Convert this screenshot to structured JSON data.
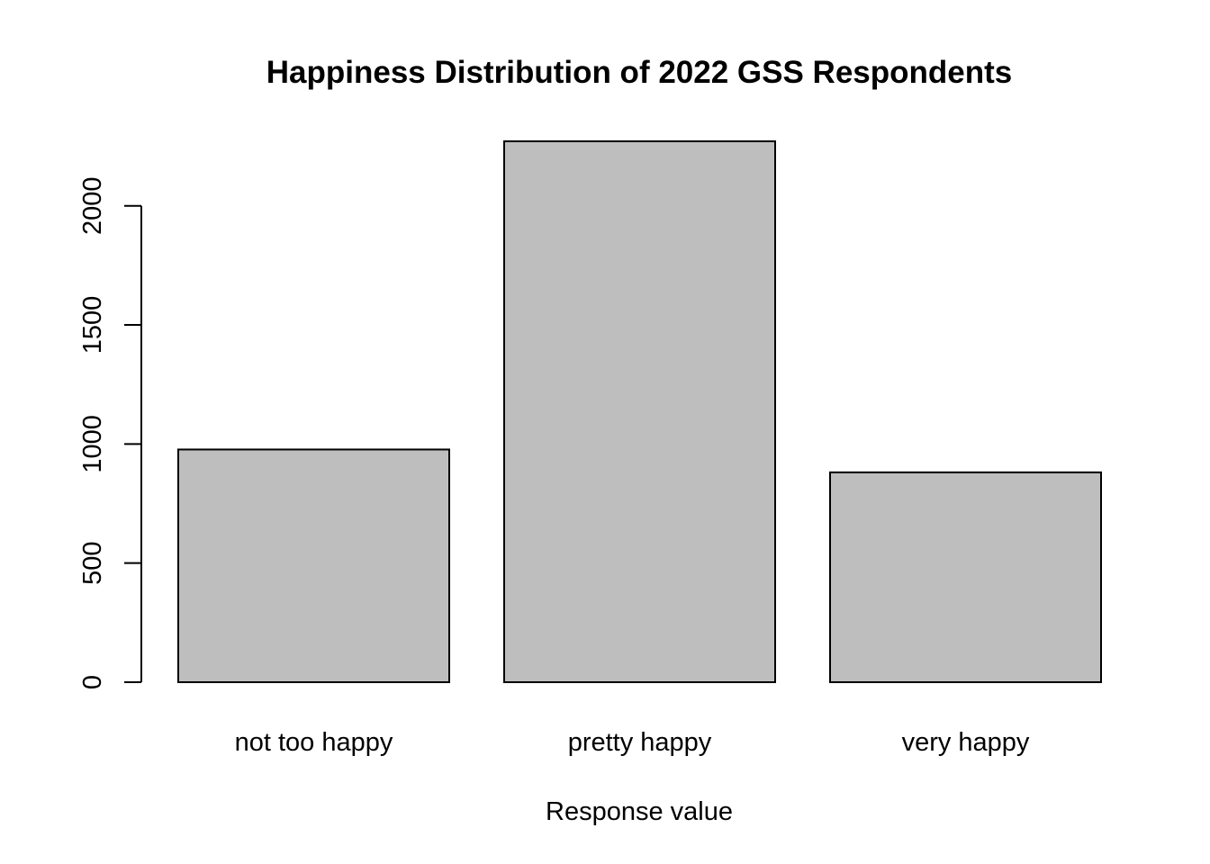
{
  "chart_data": {
    "type": "bar",
    "title": "Happiness Distribution of 2022 GSS Respondents",
    "xlabel": "Response value",
    "ylabel": "",
    "categories": [
      "not too happy",
      "pretty happy",
      "very happy"
    ],
    "values": [
      977,
      2271,
      881
    ],
    "ylim": [
      0,
      2271
    ],
    "yticks": [
      0,
      500,
      1000,
      1500,
      2000
    ],
    "ytick_labels": [
      "0",
      "500",
      "1000",
      "1500",
      "2000"
    ],
    "bar_color": "#BEBEBE",
    "bar_border_color": "#000000",
    "grid": false,
    "legend": "none"
  }
}
